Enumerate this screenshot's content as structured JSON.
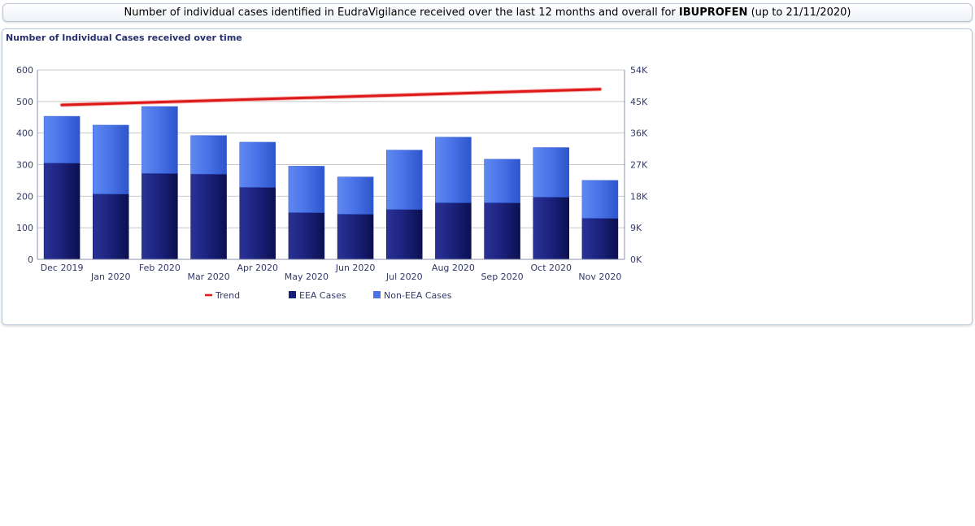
{
  "header": {
    "prefix": "Number of individual cases identified in EudraVigilance received over the last 12 months and overall for ",
    "drug": "IBUPROFEN",
    "suffix": " (up to 21/11/2020)"
  },
  "panel": {
    "title": "Number of Individual Cases received over time"
  },
  "colors": {
    "eea": "#1a1f7a",
    "non_eea": "#4a74e8",
    "trend": "#dd1a1a",
    "grid": "#c8c8c8"
  },
  "chart_data": {
    "type": "bar",
    "stacked": true,
    "categories": [
      "Dec 2019",
      "Jan 2020",
      "Feb 2020",
      "Mar 2020",
      "Apr 2020",
      "May 2020",
      "Jun 2020",
      "Jul 2020",
      "Aug 2020",
      "Sep 2020",
      "Oct 2020",
      "Nov 2020"
    ],
    "series": [
      {
        "name": "EEA Cases",
        "values": [
          305,
          207,
          272,
          270,
          228,
          148,
          143,
          158,
          179,
          179,
          197,
          130
        ]
      },
      {
        "name": "Non-EEA Cases",
        "values": [
          148,
          218,
          212,
          122,
          143,
          147,
          118,
          188,
          208,
          138,
          157,
          120
        ]
      }
    ],
    "trend": {
      "name": "Trend",
      "axis": "right",
      "start": 44000,
      "end": 48500
    },
    "y_left": {
      "ticks": [
        "0",
        "100",
        "200",
        "300",
        "400",
        "500",
        "600"
      ],
      "range": [
        0,
        600
      ]
    },
    "y_right": {
      "ticks": [
        "0K",
        "9K",
        "18K",
        "27K",
        "36K",
        "45K",
        "54K"
      ],
      "range": [
        0,
        54000
      ]
    },
    "legend": [
      "Trend",
      "EEA Cases",
      "Non-EEA Cases"
    ],
    "legend_position": "bottom",
    "grid": true
  }
}
